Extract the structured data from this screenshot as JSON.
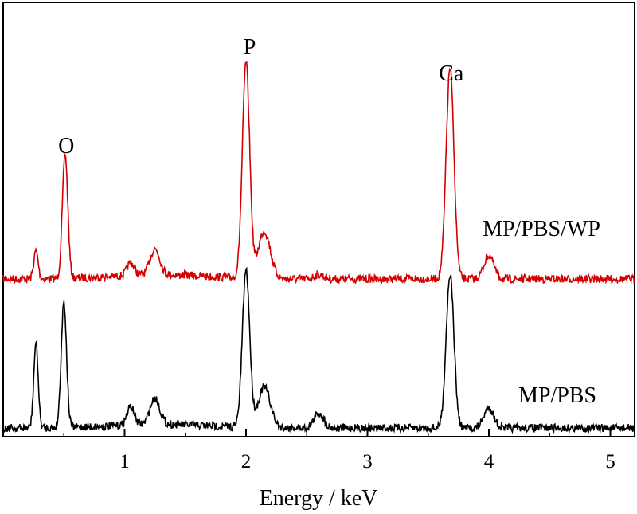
{
  "chart_data": {
    "type": "line",
    "title": "",
    "xlabel": "Energy / keV",
    "ylabel": "",
    "xlim": [
      0,
      5.2
    ],
    "xticks": [
      1,
      2,
      3,
      4,
      5
    ],
    "xtick_labels": [
      "1",
      "2",
      "3",
      "4",
      "5"
    ],
    "yticks_visible": false,
    "grid": false,
    "peak_labels": [
      {
        "text": "O",
        "x": 0.52
      },
      {
        "text": "P",
        "x": 2.03
      },
      {
        "text": "Ca",
        "x": 3.69
      }
    ],
    "series": [
      {
        "name": "MP/PBS/WP",
        "color": "#d40000",
        "peaks": [
          {
            "x": 0.27,
            "height": 0.13
          },
          {
            "x": 0.51,
            "height": 0.58
          },
          {
            "x": 1.05,
            "height": 0.06
          },
          {
            "x": 1.25,
            "height": 0.12
          },
          {
            "x": 2.0,
            "height": 1.0
          },
          {
            "x": 2.15,
            "height": 0.22
          },
          {
            "x": 2.6,
            "height": 0.02
          },
          {
            "x": 3.68,
            "height": 0.98
          },
          {
            "x": 4.0,
            "height": 0.11
          }
        ]
      },
      {
        "name": "MP/PBS",
        "color": "#000000",
        "peaks": [
          {
            "x": 0.27,
            "height": 0.46
          },
          {
            "x": 0.5,
            "height": 0.68
          },
          {
            "x": 1.05,
            "height": 0.1
          },
          {
            "x": 1.25,
            "height": 0.14
          },
          {
            "x": 2.0,
            "height": 0.85
          },
          {
            "x": 2.15,
            "height": 0.22
          },
          {
            "x": 2.6,
            "height": 0.08
          },
          {
            "x": 3.68,
            "height": 0.83
          },
          {
            "x": 4.0,
            "height": 0.11
          }
        ]
      }
    ]
  }
}
